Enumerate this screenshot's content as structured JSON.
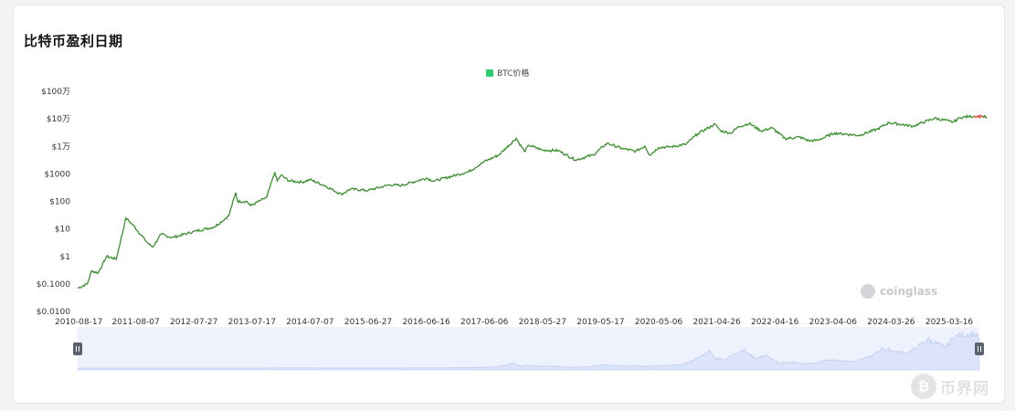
{
  "title": "比特币盈利日期",
  "legend": {
    "label": "BTC价格",
    "color": "#2ecc71"
  },
  "watermark": "coinglass",
  "corner_watermark": {
    "coin": "₿",
    "text": "币界网"
  },
  "colors": {
    "line": "#3a8f2e",
    "recent": "#e74c3c",
    "slider_fill": "#dbe4fb",
    "slider_bg": "#eef2fd",
    "handle": "#5a6270"
  },
  "chart_data": {
    "type": "line",
    "scale": "log",
    "ylim": [
      0.01,
      1000000
    ],
    "y_ticks": [
      {
        "value": 1000000,
        "label": "$100万"
      },
      {
        "value": 100000,
        "label": "$10万"
      },
      {
        "value": 10000,
        "label": "$1万"
      },
      {
        "value": 1000,
        "label": "$1000"
      },
      {
        "value": 100,
        "label": "$100"
      },
      {
        "value": 10,
        "label": "$10"
      },
      {
        "value": 1,
        "label": "$1"
      },
      {
        "value": 0.1,
        "label": "$0.1000"
      },
      {
        "value": 0.01,
        "label": "$0.0100"
      }
    ],
    "x_ticks": [
      "2010-08-17",
      "2011-08-07",
      "2012-07-27",
      "2013-07-17",
      "2014-07-07",
      "2015-06-27",
      "2016-06-16",
      "2017-06-06",
      "2018-05-27",
      "2019-05-17",
      "2020-05-06",
      "2021-04-26",
      "2022-04-16",
      "2023-04-06",
      "2024-03-26",
      "2025-03-16"
    ],
    "x_range": [
      "2010-08-17",
      "2025-11-01"
    ],
    "series": [
      {
        "name": "BTC价格",
        "points": [
          [
            "2010-08-17",
            0.07
          ],
          [
            "2010-10-15",
            0.1
          ],
          [
            "2010-11-10",
            0.3
          ],
          [
            "2010-12-20",
            0.25
          ],
          [
            "2011-02-10",
            1.0
          ],
          [
            "2011-04-10",
            0.8
          ],
          [
            "2011-06-08",
            25
          ],
          [
            "2011-07-20",
            14
          ],
          [
            "2011-10-20",
            3
          ],
          [
            "2011-11-18",
            2.2
          ],
          [
            "2012-01-10",
            6.5
          ],
          [
            "2012-03-15",
            4.8
          ],
          [
            "2012-07-27",
            8
          ],
          [
            "2012-12-01",
            12
          ],
          [
            "2013-02-25",
            30
          ],
          [
            "2013-04-09",
            210
          ],
          [
            "2013-04-20",
            100
          ],
          [
            "2013-06-15",
            100
          ],
          [
            "2013-07-10",
            70
          ],
          [
            "2013-10-15",
            140
          ],
          [
            "2013-12-04",
            1150
          ],
          [
            "2013-12-18",
            550
          ],
          [
            "2014-01-10",
            900
          ],
          [
            "2014-02-28",
            560
          ],
          [
            "2014-05-20",
            500
          ],
          [
            "2014-07-07",
            620
          ],
          [
            "2014-10-01",
            380
          ],
          [
            "2015-01-14",
            180
          ],
          [
            "2015-03-10",
            280
          ],
          [
            "2015-06-27",
            250
          ],
          [
            "2015-11-04",
            400
          ],
          [
            "2016-01-15",
            380
          ],
          [
            "2016-06-16",
            700
          ],
          [
            "2016-08-02",
            550
          ],
          [
            "2016-12-31",
            960
          ],
          [
            "2017-03-01",
            1200
          ],
          [
            "2017-06-06",
            2800
          ],
          [
            "2017-09-01",
            4800
          ],
          [
            "2017-12-17",
            19500
          ],
          [
            "2018-02-06",
            6500
          ],
          [
            "2018-03-05",
            11000
          ],
          [
            "2018-05-27",
            7300
          ],
          [
            "2018-09-01",
            7000
          ],
          [
            "2018-12-15",
            3200
          ],
          [
            "2019-04-02",
            4900
          ],
          [
            "2019-06-26",
            13000
          ],
          [
            "2019-09-25",
            8400
          ],
          [
            "2019-12-18",
            6600
          ],
          [
            "2020-02-12",
            10300
          ],
          [
            "2020-03-12",
            4800
          ],
          [
            "2020-05-06",
            9100
          ],
          [
            "2020-07-25",
            9700
          ],
          [
            "2020-10-20",
            12000
          ],
          [
            "2020-12-31",
            29000
          ],
          [
            "2021-04-14",
            64000
          ],
          [
            "2021-05-19",
            37000
          ],
          [
            "2021-07-20",
            30000
          ],
          [
            "2021-09-06",
            52000
          ],
          [
            "2021-11-10",
            68000
          ],
          [
            "2022-01-24",
            36000
          ],
          [
            "2022-03-29",
            47000
          ],
          [
            "2022-06-18",
            19000
          ],
          [
            "2022-09-13",
            22000
          ],
          [
            "2022-11-09",
            16000
          ],
          [
            "2023-01-01",
            16500
          ],
          [
            "2023-04-14",
            30500
          ],
          [
            "2023-09-11",
            25000
          ],
          [
            "2023-12-31",
            42000
          ],
          [
            "2024-03-14",
            73000
          ],
          [
            "2024-08-05",
            54000
          ],
          [
            "2024-12-17",
            106000
          ],
          [
            "2025-03-16",
            82000
          ],
          [
            "2025-04-08",
            76000
          ],
          [
            "2025-05-22",
            111000
          ],
          [
            "2025-07-14",
            122000
          ],
          [
            "2025-08-14",
            123000
          ],
          [
            "2025-10-06",
            125000
          ],
          [
            "2025-11-01",
            110000
          ]
        ]
      }
    ]
  }
}
